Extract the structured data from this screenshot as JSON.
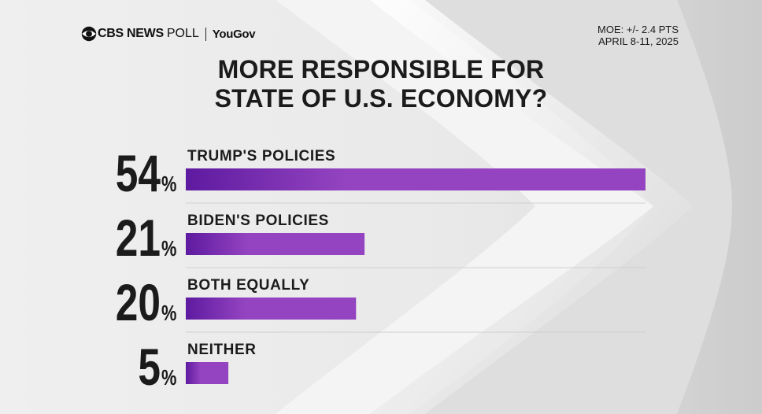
{
  "header": {
    "brand": "CBS NEWS",
    "brand_suffix": "POLL",
    "partner": "YouGov",
    "moe": "MOE: +/- 2.4 PTS",
    "dates": "APRIL 8-11, 2025"
  },
  "chart_data": {
    "type": "bar",
    "orientation": "horizontal",
    "title": [
      "MORE RESPONSIBLE FOR",
      "STATE OF U.S. ECONOMY?"
    ],
    "categories": [
      "TRUMP'S POLICIES",
      "BIDEN'S POLICIES",
      "BOTH EQUALLY",
      "NEITHER"
    ],
    "values": [
      54,
      21,
      20,
      5
    ],
    "value_labels": [
      "54",
      "21",
      "20",
      "5"
    ],
    "unit": "%",
    "xlim": [
      0,
      54
    ],
    "bar_color": "#9444c0",
    "bar_color_dark": "#5e1aa0"
  },
  "colors": {
    "text": "#1b1b1b",
    "background": "#e8e8e8",
    "gridline": "#cfcfcf"
  }
}
